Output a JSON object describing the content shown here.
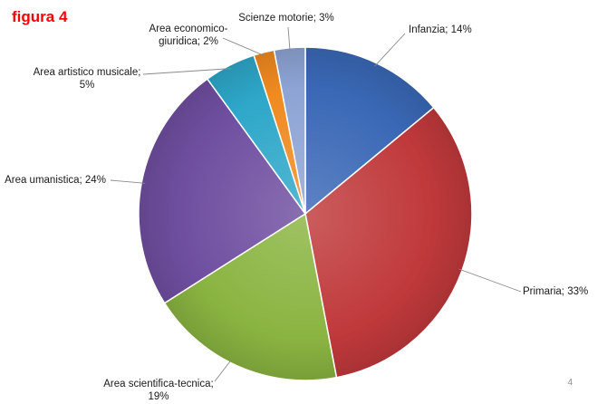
{
  "figure_label": "figura 4",
  "page_number": "4",
  "chart_data": {
    "type": "pie",
    "title": "",
    "start_angle_deg": 0,
    "direction": "clockwise",
    "slices": [
      {
        "label": "Infanzia; 14%",
        "name": "Infanzia",
        "value": 14,
        "color": "#3a68b6",
        "text_lines": [
          "Infanzia; 14%"
        ]
      },
      {
        "label": "Primaria; 33%",
        "name": "Primaria",
        "value": 33,
        "color": "#c0393b",
        "text_lines": [
          "Primaria; 33%"
        ]
      },
      {
        "label": "Area scientifica-tecnica; 19%",
        "name": "Area scientifica-tecnica",
        "value": 19,
        "color": "#8ab441",
        "text_lines": [
          "Area scientifica-tecnica;",
          "19%"
        ]
      },
      {
        "label": "Area umanistica; 24%",
        "name": "Area umanistica",
        "value": 24,
        "color": "#6f4ea0",
        "text_lines": [
          "Area umanistica; 24%"
        ]
      },
      {
        "label": "Area artistico musicale; 5%",
        "name": "Area artistico musicale",
        "value": 5,
        "color": "#2ea7c9",
        "text_lines": [
          "Area artistico musicale;",
          "5%"
        ]
      },
      {
        "label": "Area economico-giuridica; 2%",
        "name": "Area economico-giuridica",
        "value": 2,
        "color": "#f08a20",
        "text_lines": [
          "Area economico-",
          "giuridica; 2%"
        ]
      },
      {
        "label": "Scienze motorie; 3%",
        "name": "Scienze motorie",
        "value": 3,
        "color": "#8da4d4",
        "text_lines": [
          "Scienze motorie; 3%"
        ]
      }
    ]
  }
}
